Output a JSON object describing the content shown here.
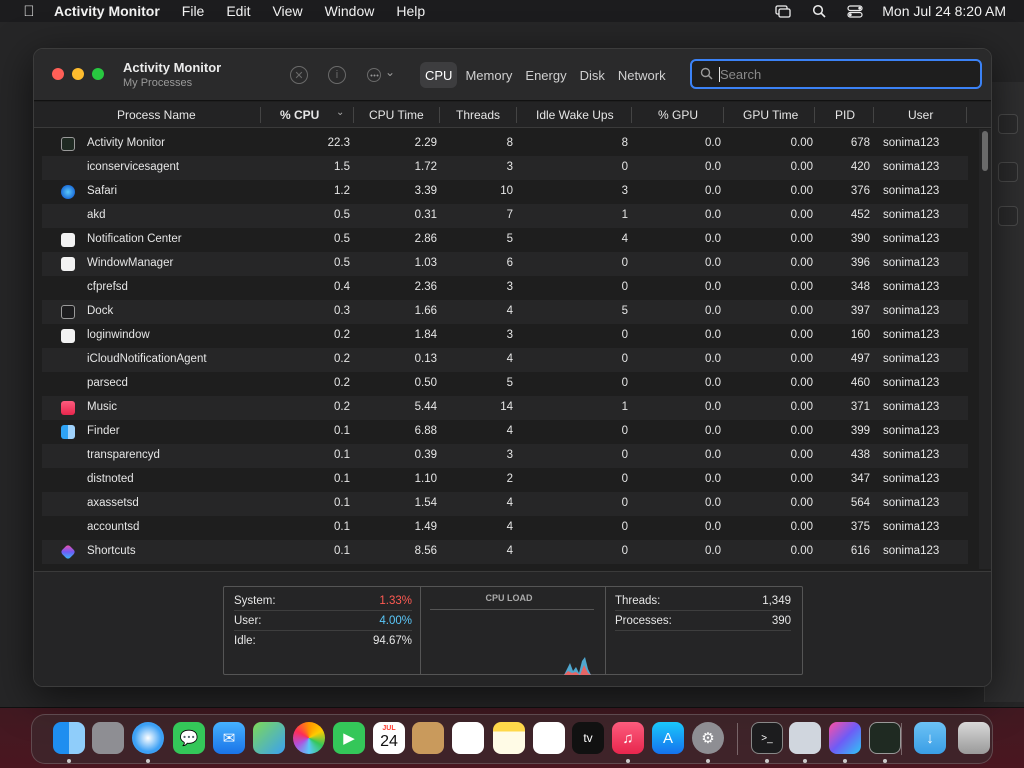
{
  "menubar": {
    "app_name": "Activity Monitor",
    "items": [
      "File",
      "Edit",
      "View",
      "Window",
      "Help"
    ],
    "clock": "Mon Jul 24  8:20 AM"
  },
  "window": {
    "title": "Activity Monitor",
    "subtitle": "My Processes",
    "tabs": [
      "CPU",
      "Memory",
      "Energy",
      "Disk",
      "Network"
    ],
    "active_tab": "CPU",
    "search_placeholder": "Search"
  },
  "table": {
    "columns": [
      "Process Name",
      "% CPU",
      "CPU Time",
      "Threads",
      "Idle Wake Ups",
      "% GPU",
      "GPU Time",
      "PID",
      "User"
    ],
    "rows": [
      {
        "icon": "activity-monitor-icon",
        "name": "Activity Monitor",
        "cpu": "22.3",
        "cpu_time": "2.29",
        "threads": "8",
        "idle": "8",
        "gpu": "0.0",
        "gpu_time": "0.00",
        "pid": "678",
        "user": "sonima123"
      },
      {
        "icon": "",
        "name": "iconservicesagent",
        "cpu": "1.5",
        "cpu_time": "1.72",
        "threads": "3",
        "idle": "0",
        "gpu": "0.0",
        "gpu_time": "0.00",
        "pid": "420",
        "user": "sonima123"
      },
      {
        "icon": "safari-icon",
        "name": "Safari",
        "cpu": "1.2",
        "cpu_time": "3.39",
        "threads": "10",
        "idle": "3",
        "gpu": "0.0",
        "gpu_time": "0.00",
        "pid": "376",
        "user": "sonima123"
      },
      {
        "icon": "",
        "name": "akd",
        "cpu": "0.5",
        "cpu_time": "0.31",
        "threads": "7",
        "idle": "1",
        "gpu": "0.0",
        "gpu_time": "0.00",
        "pid": "452",
        "user": "sonima123"
      },
      {
        "icon": "generic-app-icon",
        "name": "Notification Center",
        "cpu": "0.5",
        "cpu_time": "2.86",
        "threads": "5",
        "idle": "4",
        "gpu": "0.0",
        "gpu_time": "0.00",
        "pid": "390",
        "user": "sonima123"
      },
      {
        "icon": "generic-app-icon",
        "name": "WindowManager",
        "cpu": "0.5",
        "cpu_time": "1.03",
        "threads": "6",
        "idle": "0",
        "gpu": "0.0",
        "gpu_time": "0.00",
        "pid": "396",
        "user": "sonima123"
      },
      {
        "icon": "",
        "name": "cfprefsd",
        "cpu": "0.4",
        "cpu_time": "2.36",
        "threads": "3",
        "idle": "0",
        "gpu": "0.0",
        "gpu_time": "0.00",
        "pid": "348",
        "user": "sonima123"
      },
      {
        "icon": "dock-icon",
        "name": "Dock",
        "cpu": "0.3",
        "cpu_time": "1.66",
        "threads": "4",
        "idle": "5",
        "gpu": "0.0",
        "gpu_time": "0.00",
        "pid": "397",
        "user": "sonima123"
      },
      {
        "icon": "generic-app-icon",
        "name": "loginwindow",
        "cpu": "0.2",
        "cpu_time": "1.84",
        "threads": "3",
        "idle": "0",
        "gpu": "0.0",
        "gpu_time": "0.00",
        "pid": "160",
        "user": "sonima123"
      },
      {
        "icon": "",
        "name": "iCloudNotificationAgent",
        "cpu": "0.2",
        "cpu_time": "0.13",
        "threads": "4",
        "idle": "0",
        "gpu": "0.0",
        "gpu_time": "0.00",
        "pid": "497",
        "user": "sonima123"
      },
      {
        "icon": "",
        "name": "parsecd",
        "cpu": "0.2",
        "cpu_time": "0.50",
        "threads": "5",
        "idle": "0",
        "gpu": "0.0",
        "gpu_time": "0.00",
        "pid": "460",
        "user": "sonima123"
      },
      {
        "icon": "music-icon",
        "name": "Music",
        "cpu": "0.2",
        "cpu_time": "5.44",
        "threads": "14",
        "idle": "1",
        "gpu": "0.0",
        "gpu_time": "0.00",
        "pid": "371",
        "user": "sonima123"
      },
      {
        "icon": "finder-icon",
        "name": "Finder",
        "cpu": "0.1",
        "cpu_time": "6.88",
        "threads": "4",
        "idle": "0",
        "gpu": "0.0",
        "gpu_time": "0.00",
        "pid": "399",
        "user": "sonima123"
      },
      {
        "icon": "",
        "name": "transparencyd",
        "cpu": "0.1",
        "cpu_time": "0.39",
        "threads": "3",
        "idle": "0",
        "gpu": "0.0",
        "gpu_time": "0.00",
        "pid": "438",
        "user": "sonima123"
      },
      {
        "icon": "",
        "name": "distnoted",
        "cpu": "0.1",
        "cpu_time": "1.10",
        "threads": "2",
        "idle": "0",
        "gpu": "0.0",
        "gpu_time": "0.00",
        "pid": "347",
        "user": "sonima123"
      },
      {
        "icon": "",
        "name": "axassetsd",
        "cpu": "0.1",
        "cpu_time": "1.54",
        "threads": "4",
        "idle": "0",
        "gpu": "0.0",
        "gpu_time": "0.00",
        "pid": "564",
        "user": "sonima123"
      },
      {
        "icon": "",
        "name": "accountsd",
        "cpu": "0.1",
        "cpu_time": "1.49",
        "threads": "4",
        "idle": "0",
        "gpu": "0.0",
        "gpu_time": "0.00",
        "pid": "375",
        "user": "sonima123"
      },
      {
        "icon": "shortcuts-icon",
        "name": "Shortcuts",
        "cpu": "0.1",
        "cpu_time": "8.56",
        "threads": "4",
        "idle": "0",
        "gpu": "0.0",
        "gpu_time": "0.00",
        "pid": "616",
        "user": "sonima123"
      }
    ]
  },
  "stats": {
    "system_label": "System:",
    "system_value": "1.33%",
    "user_label": "User:",
    "user_value": "4.00%",
    "idle_label": "Idle:",
    "idle_value": "94.67%",
    "cpu_load_title": "CPU LOAD",
    "threads_label": "Threads:",
    "threads_value": "1,349",
    "processes_label": "Processes:",
    "processes_value": "390"
  },
  "dock": {
    "apps": [
      "finder",
      "launchpad",
      "safari",
      "messages",
      "mail",
      "maps",
      "photos",
      "facetime",
      "calendar",
      "contacts",
      "reminders",
      "notes",
      "freeform",
      "tv",
      "music",
      "app-store",
      "system-settings",
      "terminal",
      "xcode",
      "shortcuts",
      "activity-monitor",
      "downloads",
      "trash"
    ],
    "calendar_month": "JUL",
    "calendar_day": "24"
  },
  "colors": {
    "accent": "#3b82f6",
    "system_red": "#ff5a52",
    "user_blue": "#5ac8fa"
  }
}
